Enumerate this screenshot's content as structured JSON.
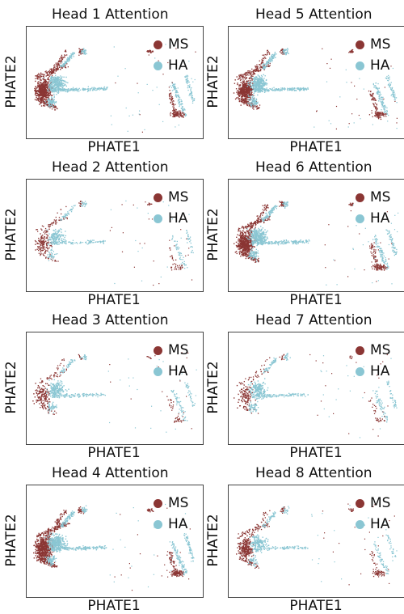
{
  "chart_data": [
    {
      "type": "scatter",
      "title": "Head 1 Attention",
      "xlabel": "PHATE1",
      "ylabel": "PHATE2",
      "legend_position": "top-right",
      "series": [
        {
          "name": "MS",
          "color": "#8b3634"
        },
        {
          "name": "HA",
          "color": "#8ac6d3"
        }
      ],
      "ms_strength": 1.0,
      "ha_strength": 1.0
    },
    {
      "type": "scatter",
      "title": "Head 5 Attention",
      "xlabel": "PHATE1",
      "ylabel": "PHATE2",
      "legend_position": "top-right",
      "series": [
        {
          "name": "MS",
          "color": "#8b3634"
        },
        {
          "name": "HA",
          "color": "#8ac6d3"
        }
      ],
      "ms_strength": 0.9,
      "ha_strength": 1.0
    },
    {
      "type": "scatter",
      "title": "Head 2 Attention",
      "xlabel": "PHATE1",
      "ylabel": "PHATE2",
      "legend_position": "top-right",
      "series": [
        {
          "name": "MS",
          "color": "#8b3634"
        },
        {
          "name": "HA",
          "color": "#8ac6d3"
        }
      ],
      "ms_strength": 0.25,
      "ha_strength": 0.45
    },
    {
      "type": "scatter",
      "title": "Head 6 Attention",
      "xlabel": "PHATE1",
      "ylabel": "PHATE2",
      "legend_position": "top-right",
      "series": [
        {
          "name": "MS",
          "color": "#8b3634"
        },
        {
          "name": "HA",
          "color": "#8ac6d3"
        }
      ],
      "ms_strength": 0.95,
      "ha_strength": 0.95
    },
    {
      "type": "scatter",
      "title": "Head 3 Attention",
      "xlabel": "PHATE1",
      "ylabel": "PHATE2",
      "legend_position": "top-right",
      "series": [
        {
          "name": "MS",
          "color": "#8b3634"
        },
        {
          "name": "HA",
          "color": "#8ac6d3"
        }
      ],
      "ms_strength": 0.25,
      "ha_strength": 0.55
    },
    {
      "type": "scatter",
      "title": "Head 7 Attention",
      "xlabel": "PHATE1",
      "ylabel": "PHATE2",
      "legend_position": "top-right",
      "series": [
        {
          "name": "MS",
          "color": "#8b3634"
        },
        {
          "name": "HA",
          "color": "#8ac6d3"
        }
      ],
      "ms_strength": 0.2,
      "ha_strength": 0.6
    },
    {
      "type": "scatter",
      "title": "Head 4 Attention",
      "xlabel": "PHATE1",
      "ylabel": "PHATE2",
      "legend_position": "top-right",
      "series": [
        {
          "name": "MS",
          "color": "#8b3634"
        },
        {
          "name": "HA",
          "color": "#8ac6d3"
        }
      ],
      "ms_strength": 1.0,
      "ha_strength": 1.0
    },
    {
      "type": "scatter",
      "title": "Head 8 Attention",
      "xlabel": "PHATE1",
      "ylabel": "PHATE2",
      "legend_position": "top-right",
      "series": [
        {
          "name": "MS",
          "color": "#8b3634"
        },
        {
          "name": "HA",
          "color": "#8ac6d3"
        }
      ],
      "ms_strength": 0.45,
      "ha_strength": 0.5
    }
  ]
}
